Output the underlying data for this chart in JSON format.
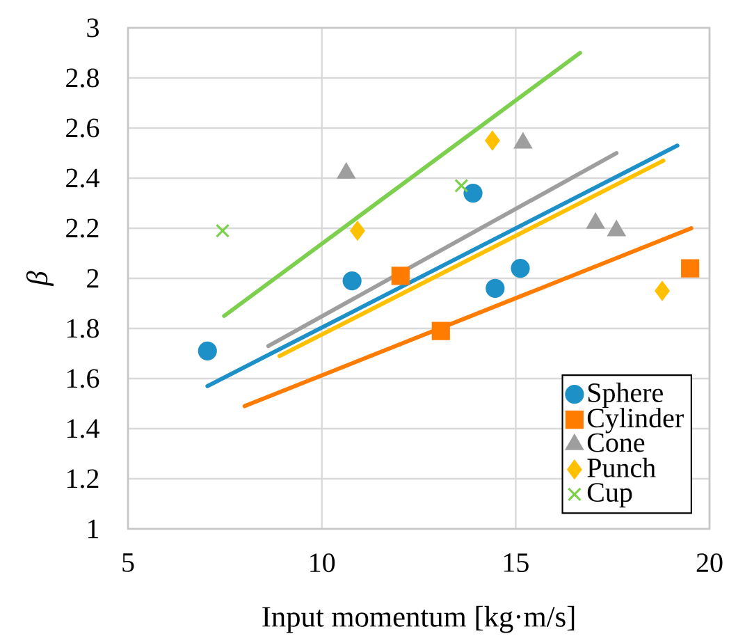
{
  "chart_data": {
    "type": "scatter",
    "xlabel": "Input momentum [kg·m/s]",
    "ylabel": "β",
    "xlim": [
      5,
      20
    ],
    "xticks": [
      5,
      10,
      15,
      20
    ],
    "ylim": [
      1,
      3
    ],
    "yticks": [
      1,
      1.2,
      1.4,
      1.6,
      1.8,
      2,
      2.2,
      2.4,
      2.6,
      2.8,
      3
    ],
    "grid": true,
    "legend": "bottom right",
    "series": [
      {
        "name": "Sphere",
        "color": "#1e90c8",
        "marker": "circle",
        "x": [
          7.05,
          10.78,
          13.9,
          14.47,
          15.12
        ],
        "values": [
          1.71,
          1.99,
          2.34,
          1.96,
          2.04
        ]
      },
      {
        "name": "Cylinder",
        "color": "#ff7c00",
        "marker": "square",
        "x": [
          12.03,
          13.07,
          19.5
        ],
        "values": [
          2.01,
          1.79,
          2.04
        ]
      },
      {
        "name": "Cone",
        "color": "#9e9e9e",
        "marker": "triangle",
        "x": [
          10.63,
          15.19,
          17.06,
          17.6
        ],
        "values": [
          2.42,
          2.54,
          2.22,
          2.19
        ]
      },
      {
        "name": "Punch",
        "color": "#ffc000",
        "marker": "diamond",
        "x": [
          10.92,
          14.4,
          18.78
        ],
        "values": [
          2.19,
          2.55,
          1.95
        ]
      },
      {
        "name": "Cup",
        "color": "#7dcf4e",
        "marker": "cross",
        "x": [
          7.44,
          13.6
        ],
        "values": [
          2.19,
          2.37
        ]
      },
      {
        "type": "line",
        "color": "#1e90c8",
        "x": [
          7.05,
          19.17
        ],
        "values": [
          1.57,
          2.53
        ]
      },
      {
        "type": "line",
        "color": "#ff7c00",
        "x": [
          8.01,
          19.53
        ],
        "values": [
          1.49,
          2.2
        ]
      },
      {
        "type": "line",
        "color": "#9e9e9e",
        "x": [
          8.62,
          17.6
        ],
        "values": [
          1.73,
          2.5
        ]
      },
      {
        "type": "line",
        "color": "#ffc000",
        "x": [
          8.91,
          18.81
        ],
        "values": [
          1.69,
          2.47
        ]
      },
      {
        "type": "line",
        "color": "#7dcf4e",
        "x": [
          7.48,
          16.66
        ],
        "values": [
          1.85,
          2.9
        ]
      }
    ]
  }
}
